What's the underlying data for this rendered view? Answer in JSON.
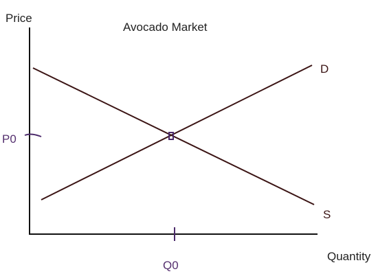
{
  "title": "Avocado Market",
  "axes": {
    "y_label": "Price",
    "x_label": "Quantity"
  },
  "curves": {
    "demand_label": "D",
    "supply_label": "S"
  },
  "equilibrium": {
    "price_label": "P0",
    "quantity_label": "Q0"
  },
  "colors": {
    "line": "#3b1414",
    "axis": "#111111",
    "marker": "#4b2a6a",
    "text_dark": "#222222",
    "text_purple": "#55306f"
  }
}
